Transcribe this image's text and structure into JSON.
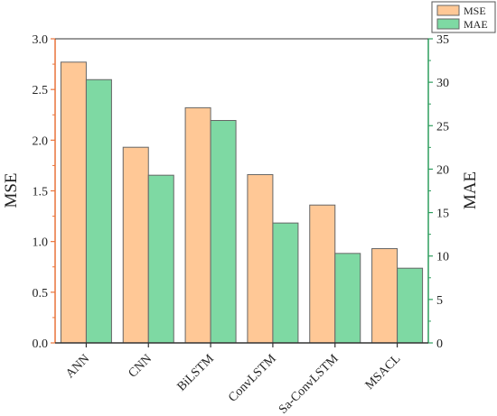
{
  "chart_data": {
    "type": "bar",
    "categories": [
      "ANN",
      "CNN",
      "BiLSTM",
      "ConvLSTM",
      "Sa-ConvLSTM",
      "MSACL"
    ],
    "series": [
      {
        "name": "MSE",
        "axis": "left",
        "color": "#FFC896",
        "values": [
          2.77,
          1.93,
          2.32,
          1.66,
          1.36,
          0.93
        ]
      },
      {
        "name": "MAE",
        "axis": "right",
        "color": "#7ED9A3",
        "values": [
          30.3,
          19.3,
          25.6,
          13.8,
          10.3,
          8.6
        ]
      }
    ],
    "ylabel_left": "MSE",
    "ylabel_right": "MAE",
    "ylim_left": [
      0,
      3.0
    ],
    "ylim_right": [
      0,
      35
    ],
    "yticks_left": [
      "0.0",
      "0.5",
      "1.0",
      "1.5",
      "2.0",
      "2.5",
      "3.0"
    ],
    "yticks_right": [
      "0",
      "5",
      "10",
      "15",
      "20",
      "25",
      "30",
      "35"
    ],
    "left_axis_color": "#E8743B",
    "right_axis_color": "#2E9E5E",
    "legend_position": "top-right",
    "grid": false
  }
}
